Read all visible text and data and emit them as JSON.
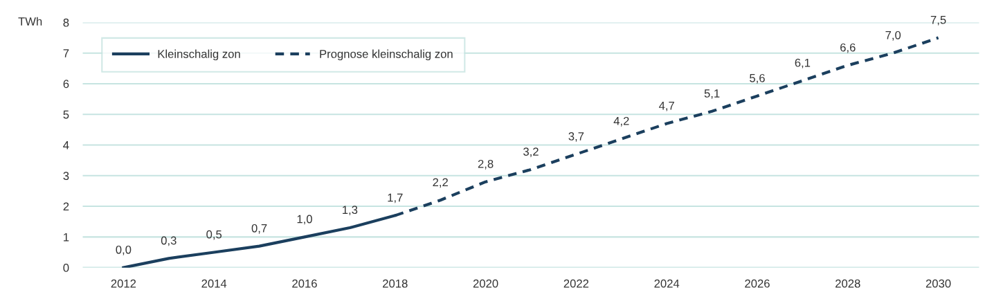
{
  "chart_data": {
    "type": "line",
    "ylabel": "TWh",
    "xlim": [
      2011.1,
      2030.9
    ],
    "xticks": [
      2012,
      2014,
      2016,
      2018,
      2020,
      2022,
      2024,
      2026,
      2028,
      2030
    ],
    "ylim": [
      0,
      8
    ],
    "yticks": [
      0,
      1,
      2,
      3,
      4,
      5,
      6,
      7,
      8
    ],
    "grid": "y",
    "legend": "top left",
    "series": [
      {
        "name": "Kleinschalig zon",
        "color": "#1b3f5e",
        "line_style": "solid",
        "x": [
          2012,
          2013,
          2014,
          2015,
          2016,
          2017,
          2018
        ],
        "values": [
          0.0,
          0.3,
          0.5,
          0.7,
          1.0,
          1.3,
          1.7
        ],
        "value_labels": [
          "0,0",
          "0,3",
          "0,5",
          "0,7",
          "1,0",
          "1,3",
          "1,7"
        ]
      },
      {
        "name": "Prognose kleinschalig zon",
        "color": "#1b3f5e",
        "line_style": "dashed",
        "x": [
          2018,
          2019,
          2020,
          2021,
          2022,
          2023,
          2024,
          2025,
          2026,
          2027,
          2028,
          2029,
          2030
        ],
        "values": [
          1.7,
          2.2,
          2.8,
          3.2,
          3.7,
          4.2,
          4.7,
          5.1,
          5.6,
          6.1,
          6.6,
          7.0,
          7.5
        ],
        "value_labels": [
          null,
          "2,2",
          "2,8",
          "3,2",
          "3,7",
          "4,2",
          "4,7",
          "5,1",
          "5,6",
          "6,1",
          "6,6",
          "7,0",
          "7,5"
        ]
      }
    ]
  }
}
